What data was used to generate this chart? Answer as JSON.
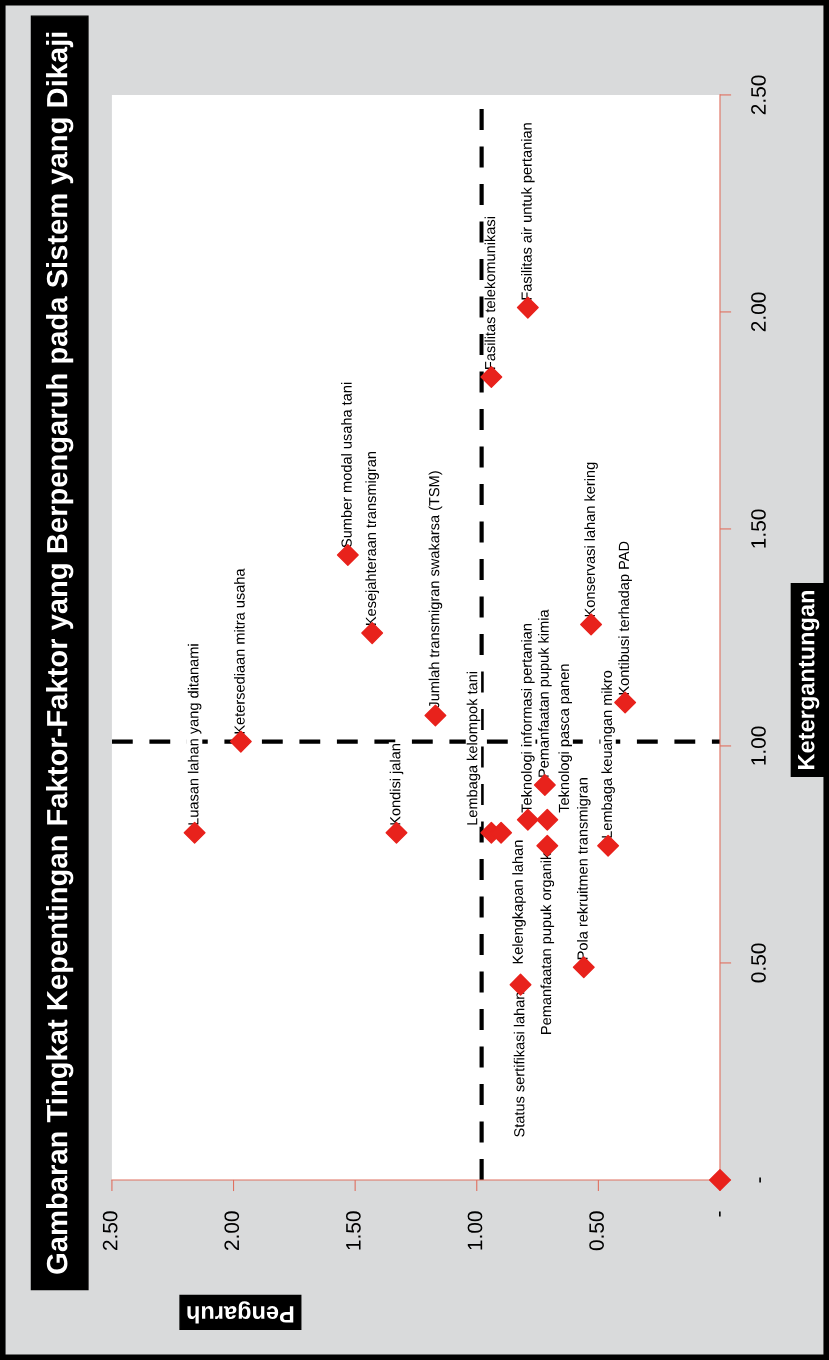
{
  "chart_data": {
    "type": "scatter",
    "title": "Gambaran Tingkat Kepentingan Faktor-Faktor yang Berpengaruh pada Sistem yang Dikaji",
    "xlabel": "Pengaruh",
    "ylabel": "Ketergantungan",
    "x": [
      2.16,
      1.97,
      1.33,
      1.53,
      1.43,
      1.17,
      0.94,
      0.79,
      0.53,
      0.39,
      0.94,
      0.9,
      0.79,
      0.72,
      0.71,
      0.71,
      0.46,
      0.56,
      0.82,
      0.0
    ],
    "series": [
      {
        "color": "#e8221c",
        "values": [
          0.8,
          1.01,
          0.8,
          1.44,
          1.26,
          1.07,
          1.85,
          2.01,
          1.28,
          1.1,
          0.8,
          0.8,
          0.83,
          0.91,
          0.83,
          0.77,
          0.77,
          0.49,
          0.45,
          0.0
        ]
      }
    ],
    "marker": "diamond",
    "xlim": [
      2.5,
      0
    ],
    "ylim": [
      0,
      2.5
    ],
    "xticks": [
      {
        "value": 0,
        "label": "-"
      },
      {
        "value": 0.5,
        "label": "0.50"
      },
      {
        "value": 1.0,
        "label": "1.00"
      },
      {
        "value": 1.5,
        "label": "1.50"
      },
      {
        "value": 2.0,
        "label": "2.00"
      },
      {
        "value": 2.5,
        "label": "2.50"
      }
    ],
    "yticks": [
      {
        "value": 0,
        "label": "-"
      },
      {
        "value": 0.5,
        "label": "0.50"
      },
      {
        "value": 1.0,
        "label": "1.00"
      },
      {
        "value": 1.5,
        "label": "1.50"
      },
      {
        "value": 2.0,
        "label": "2.00"
      },
      {
        "value": 2.5,
        "label": "2.50"
      }
    ],
    "ref_lines": [
      {
        "axis": "x",
        "value": 0.98,
        "color": "#000000",
        "line_style": "dashed"
      },
      {
        "axis": "y",
        "value": 1.01,
        "color": "#000000",
        "line_style": "dashed"
      }
    ],
    "grid": false,
    "legend": false,
    "annotations": [
      {
        "text": "Luasan lahan yang ditanami",
        "x": 2.16,
        "y": 0.8
      },
      {
        "text": "Ketersediaan mitra usaha",
        "x": 1.97,
        "y": 1.01
      },
      {
        "text": "Kondisi jalan",
        "x": 1.33,
        "y": 0.8
      },
      {
        "text": "Sumber modal usaha tani",
        "x": 1.53,
        "y": 1.44
      },
      {
        "text": "Kesejahteraan transmigran",
        "x": 1.43,
        "y": 1.26
      },
      {
        "text": "Jumlah transmigran swakarsa (TSM)",
        "x": 1.17,
        "y": 1.07
      },
      {
        "text": "Fasilitas telekomunikasi",
        "x": 0.94,
        "y": 1.85
      },
      {
        "text": "Fasilitas air untuk pertanian",
        "x": 0.79,
        "y": 2.01
      },
      {
        "text": "Konservasi lahan kering",
        "x": 0.53,
        "y": 1.28
      },
      {
        "text": "Kontibusi terhadap PAD",
        "x": 0.39,
        "y": 1.1
      },
      {
        "text": "Lembaga kelompok tani",
        "x": 0.94,
        "y": 0.8
      },
      {
        "text": "Kelengkapan lahan",
        "x": 0.9,
        "y": 0.8
      },
      {
        "text": "Teknologi informasi pertanian",
        "x": 0.79,
        "y": 0.83
      },
      {
        "text": "Pemanfaatan pupuk kimia",
        "x": 0.72,
        "y": 0.91
      },
      {
        "text": "Teknologi pasca panen",
        "x": 0.71,
        "y": 0.83
      },
      {
        "text": "Pemanfaatan pupuk organik",
        "x": 0.71,
        "y": 0.77
      },
      {
        "text": "Lembaga keuangan mikro",
        "x": 0.46,
        "y": 0.77
      },
      {
        "text": "Pola rekruitmen transmigran",
        "x": 0.56,
        "y": 0.49
      },
      {
        "text": "Status sertifikasi lahan",
        "x": 0.82,
        "y": 0.45
      }
    ]
  }
}
